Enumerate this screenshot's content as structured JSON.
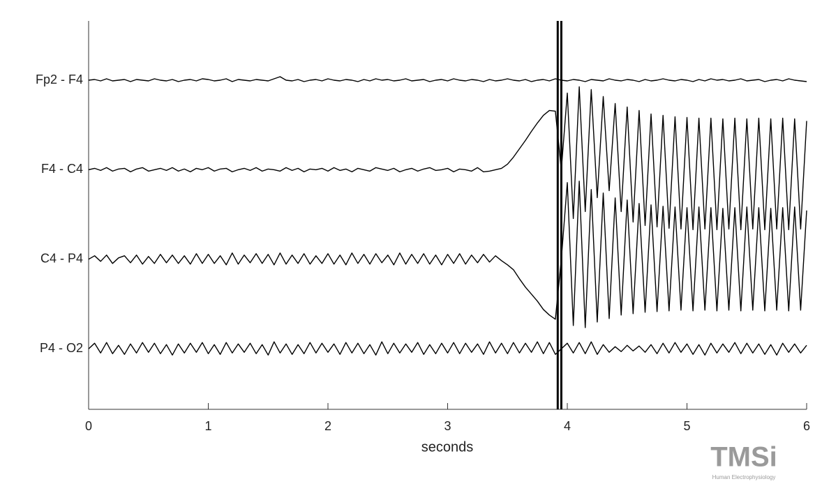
{
  "chart_data": {
    "type": "line",
    "xlabel": "seconds",
    "xlim": [
      0,
      6
    ],
    "xticks": [
      0,
      1,
      2,
      3,
      4,
      5,
      6
    ],
    "color": "#000000",
    "event_x": [
      3.92,
      3.95
    ],
    "x": [
      0,
      0.05,
      0.1,
      0.15,
      0.2,
      0.25,
      0.3,
      0.35,
      0.4,
      0.45,
      0.5,
      0.55,
      0.6,
      0.65,
      0.7,
      0.75,
      0.8,
      0.85,
      0.9,
      0.95,
      1,
      1.05,
      1.1,
      1.15,
      1.2,
      1.25,
      1.3,
      1.35,
      1.4,
      1.45,
      1.5,
      1.55,
      1.6,
      1.65,
      1.7,
      1.75,
      1.8,
      1.85,
      1.9,
      1.95,
      2,
      2.05,
      2.1,
      2.15,
      2.2,
      2.25,
      2.3,
      2.35,
      2.4,
      2.45,
      2.5,
      2.55,
      2.6,
      2.65,
      2.7,
      2.75,
      2.8,
      2.85,
      2.9,
      2.95,
      3,
      3.05,
      3.1,
      3.15,
      3.2,
      3.25,
      3.3,
      3.35,
      3.4,
      3.45,
      3.5,
      3.55,
      3.6,
      3.65,
      3.7,
      3.75,
      3.8,
      3.85,
      3.9,
      3.95,
      4,
      4.05,
      4.1,
      4.15,
      4.2,
      4.25,
      4.3,
      4.35,
      4.4,
      4.45,
      4.5,
      4.55,
      4.6,
      4.65,
      4.7,
      4.75,
      4.8,
      4.85,
      4.9,
      4.95,
      5,
      5.05,
      5.1,
      5.15,
      5.2,
      5.25,
      5.3,
      5.35,
      5.4,
      5.45,
      5.5,
      5.55,
      5.6,
      5.65,
      5.7,
      5.75,
      5.8,
      5.85,
      5.9,
      5.95,
      6
    ],
    "series": [
      {
        "name": "Fp2 - F4",
        "values": [
          0,
          1,
          -1,
          2,
          -1,
          0,
          1,
          -2,
          1,
          0,
          -1,
          2,
          0,
          -1,
          1,
          -2,
          0,
          1,
          -1,
          2,
          1,
          -1,
          0,
          2,
          -2,
          1,
          0,
          -1,
          1,
          0,
          -1,
          2,
          5,
          0,
          -1,
          1,
          -2,
          0,
          1,
          -1,
          2,
          0,
          -1,
          1,
          0,
          -2,
          1,
          -1,
          2,
          0,
          1,
          -1,
          0,
          2,
          -1,
          0,
          1,
          -2,
          0,
          1,
          -1,
          2,
          0,
          -1,
          1,
          0,
          -2,
          1,
          -1,
          0,
          2,
          0,
          -1,
          1,
          -2,
          0,
          1,
          -1,
          2,
          0,
          -1,
          1,
          0,
          -2,
          1,
          0,
          -1,
          2,
          0,
          -1,
          1,
          0,
          -2,
          1,
          -1,
          0,
          2,
          0,
          -1,
          1,
          0,
          -2,
          1,
          -1,
          2,
          0,
          1,
          -1,
          0,
          2,
          -1,
          0,
          1,
          -2,
          0,
          1,
          -1,
          2,
          0,
          -1,
          -2
        ]
      },
      {
        "name": "F4 - C4",
        "values": [
          0,
          2,
          -1,
          3,
          -2,
          1,
          2,
          -3,
          1,
          3,
          -2,
          0,
          2,
          -1,
          3,
          -2,
          1,
          -3,
          2,
          0,
          3,
          -2,
          1,
          2,
          -3,
          0,
          2,
          -1,
          3,
          -2,
          1,
          0,
          -2,
          3,
          -1,
          2,
          -3,
          1,
          0,
          2,
          -2,
          3,
          -1,
          1,
          -3,
          2,
          0,
          -2,
          3,
          1,
          -1,
          2,
          -3,
          0,
          2,
          -2,
          1,
          3,
          -1,
          0,
          2,
          -3,
          1,
          0,
          -2,
          3,
          -3,
          -2,
          0,
          2,
          8,
          18,
          30,
          42,
          55,
          67,
          78,
          85,
          84,
          0,
          110,
          -70,
          119,
          -60,
          115,
          -40,
          105,
          -30,
          95,
          -60,
          90,
          -75,
          85,
          -80,
          80,
          -82,
          78,
          -84,
          76,
          -85,
          75,
          -86,
          74,
          -85,
          74,
          -86,
          73,
          -85,
          74,
          -86,
          73,
          -85,
          74,
          -86,
          73,
          -85,
          74,
          -86,
          73,
          -85,
          70
        ]
      },
      {
        "name": "C4 - P4",
        "values": [
          0,
          5,
          -3,
          6,
          -6,
          2,
          5,
          -5,
          6,
          -7,
          4,
          -6,
          7,
          -5,
          6,
          -6,
          5,
          -7,
          8,
          -6,
          7,
          -6,
          5,
          -8,
          9,
          -7,
          6,
          -5,
          8,
          -6,
          7,
          -8,
          9,
          -7,
          6,
          -6,
          8,
          -7,
          5,
          -6,
          8,
          -7,
          6,
          -8,
          9,
          -6,
          7,
          -7,
          8,
          -5,
          6,
          -8,
          9,
          -7,
          7,
          -6,
          8,
          -7,
          6,
          -8,
          7,
          -6,
          8,
          -7,
          6,
          -5,
          7,
          -4,
          5,
          -2,
          -8,
          -15,
          -28,
          -40,
          -50,
          -60,
          -72,
          -80,
          -86,
          0,
          110,
          -95,
          112,
          -98,
          100,
          -90,
          95,
          -85,
          88,
          -80,
          85,
          -78,
          80,
          -76,
          78,
          -75,
          76,
          -74,
          75,
          -73,
          74,
          -74,
          75,
          -73,
          74,
          -74,
          73,
          -73,
          74,
          -74,
          75,
          -73,
          74,
          -74,
          73,
          -73,
          74,
          -74,
          75,
          -73,
          70
        ]
      },
      {
        "name": "P4 - O2",
        "values": [
          0,
          8,
          -6,
          9,
          -7,
          5,
          -8,
          7,
          -6,
          9,
          -5,
          8,
          -7,
          6,
          -9,
          7,
          -6,
          8,
          -5,
          9,
          -7,
          6,
          -8,
          9,
          -6,
          7,
          -5,
          8,
          -7,
          6,
          -9,
          10,
          -6,
          7,
          -8,
          6,
          -7,
          9,
          -6,
          8,
          -5,
          7,
          -8,
          9,
          -6,
          8,
          -7,
          6,
          -9,
          10,
          -7,
          8,
          -6,
          7,
          -5,
          9,
          -8,
          6,
          -7,
          8,
          -6,
          9,
          -7,
          8,
          -5,
          7,
          -8,
          10,
          -6,
          8,
          -7,
          9,
          -6,
          8,
          -5,
          10,
          -7,
          9,
          -8,
          0,
          8,
          -6,
          9,
          -7,
          10,
          -8,
          6,
          -5,
          3,
          -4,
          5,
          -3,
          4,
          -5,
          6,
          -7,
          8,
          -6,
          9,
          -5,
          7,
          -8,
          6,
          -9,
          8,
          -6,
          7,
          -5,
          9,
          -7,
          8,
          -6,
          7,
          -8,
          6,
          -9,
          8,
          -5,
          7,
          -6,
          5
        ]
      }
    ]
  },
  "logo": {
    "name": "TMSi",
    "tagline": "Human Electrophysiology"
  }
}
